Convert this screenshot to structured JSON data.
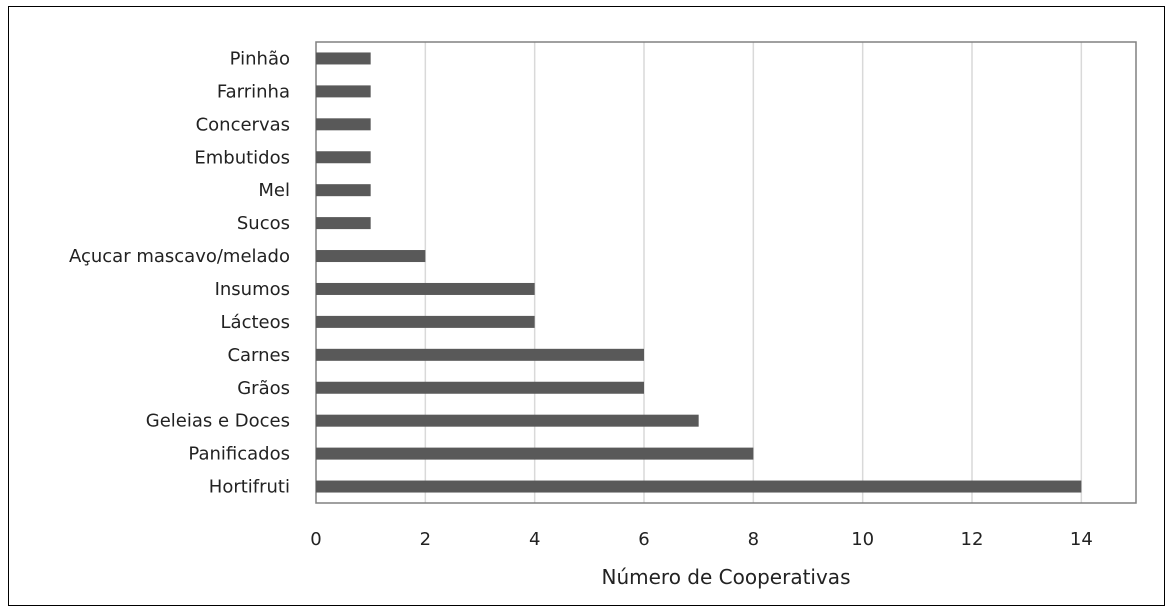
{
  "chart_data": {
    "type": "bar",
    "orientation": "horizontal",
    "title": "",
    "xlabel": "Número de Cooperativas",
    "ylabel": "",
    "categories": [
      "Pinhão",
      "Farrinha",
      "Concervas",
      "Embutidos",
      "Mel",
      "Sucos",
      "Açucar mascavo/melado",
      "Insumos",
      "Lácteos",
      "Carnes",
      "Grãos",
      "Geleias e Doces",
      "Panificados",
      "Hortifruti"
    ],
    "values": [
      1,
      1,
      1,
      1,
      1,
      1,
      2,
      4,
      4,
      6,
      6,
      7,
      8,
      14
    ],
    "xlim": [
      0,
      15
    ],
    "xticks": [
      "0",
      "2",
      "4",
      "6",
      "8",
      "10",
      "12",
      "14"
    ],
    "xtick_values": [
      0,
      2,
      4,
      6,
      8,
      10,
      12,
      14
    ],
    "grid": "vertical",
    "legend": "none",
    "colors": {
      "bar": "#595959",
      "grid": "#d9d9d9",
      "plot_border": "#808080",
      "frame": "#000000"
    }
  }
}
